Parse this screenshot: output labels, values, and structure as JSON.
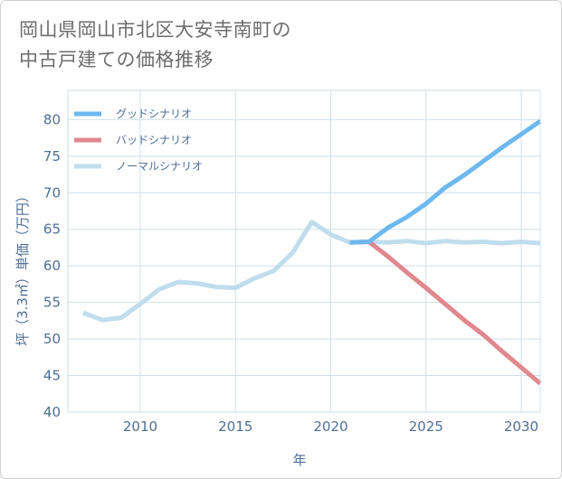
{
  "title": {
    "line1": "岡山県岡山市北区大安寺南町の",
    "line2": "中古戸建ての価格推移"
  },
  "chart_data": {
    "type": "line",
    "xlabel": "年",
    "ylabel": "坪（3.3㎡）単価（万円）",
    "xlim": [
      2006.2,
      2031
    ],
    "ylim": [
      40,
      84
    ],
    "xticks": [
      2010,
      2015,
      2020,
      2025,
      2030
    ],
    "yticks": [
      40,
      45,
      50,
      55,
      60,
      65,
      70,
      75,
      80
    ],
    "grid": true,
    "legend_position": "top-left",
    "series": [
      {
        "name": "グッドシナリオ",
        "color": "#6db8ef",
        "points": [
          [
            2021,
            63.2
          ],
          [
            2022,
            63.3
          ],
          [
            2023,
            65.2
          ],
          [
            2024,
            66.7
          ],
          [
            2025,
            68.5
          ],
          [
            2026,
            70.7
          ],
          [
            2027,
            72.4
          ],
          [
            2028,
            74.3
          ],
          [
            2029,
            76.2
          ],
          [
            2030,
            78.0
          ],
          [
            2031,
            79.8
          ]
        ]
      },
      {
        "name": "バッドシナリオ",
        "color": "#e0888e",
        "points": [
          [
            2021,
            63.2
          ],
          [
            2022,
            63.3
          ],
          [
            2023,
            61.3
          ],
          [
            2024,
            59.1
          ],
          [
            2025,
            57.0
          ],
          [
            2026,
            54.8
          ],
          [
            2027,
            52.6
          ],
          [
            2028,
            50.6
          ],
          [
            2029,
            48.3
          ],
          [
            2030,
            46.1
          ],
          [
            2031,
            43.9
          ]
        ]
      },
      {
        "name": "ノーマルシナリオ",
        "color": "#bfdded",
        "points": [
          [
            2007,
            53.6
          ],
          [
            2008,
            52.6
          ],
          [
            2009,
            52.9
          ],
          [
            2010,
            54.8
          ],
          [
            2011,
            56.8
          ],
          [
            2012,
            57.8
          ],
          [
            2013,
            57.6
          ],
          [
            2014,
            57.1
          ],
          [
            2015,
            57.0
          ],
          [
            2016,
            58.3
          ],
          [
            2017,
            59.3
          ],
          [
            2018,
            61.8
          ],
          [
            2019,
            66.0
          ],
          [
            2020,
            64.3
          ],
          [
            2021,
            63.2
          ],
          [
            2022,
            63.3
          ],
          [
            2023,
            63.2
          ],
          [
            2024,
            63.4
          ],
          [
            2025,
            63.1
          ],
          [
            2026,
            63.4
          ],
          [
            2027,
            63.2
          ],
          [
            2028,
            63.3
          ],
          [
            2029,
            63.1
          ],
          [
            2030,
            63.3
          ],
          [
            2031,
            63.1
          ]
        ]
      }
    ]
  }
}
